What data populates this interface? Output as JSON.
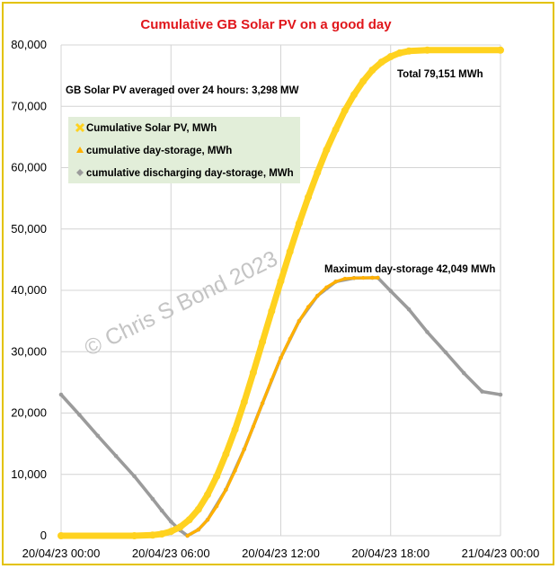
{
  "chart_data": {
    "type": "line",
    "title": "Cumulative GB Solar PV on a good day",
    "xlabel": "",
    "ylabel": "",
    "x_tick_labels": [
      "20/04/23 00:00",
      "20/04/23 06:00",
      "20/04/23 12:00",
      "20/04/23 18:00",
      "21/04/23 00:00"
    ],
    "xlim": [
      0,
      24
    ],
    "ylim": [
      0,
      80000
    ],
    "y_ticks": [
      0,
      10000,
      20000,
      30000,
      40000,
      50000,
      60000,
      70000,
      80000
    ],
    "y_tick_labels": [
      "0",
      "10,000",
      "20,000",
      "30,000",
      "40,000",
      "50,000",
      "60,000",
      "70,000",
      "80,000"
    ],
    "grid": true,
    "legend_position": "upper-left",
    "series": [
      {
        "name": "Cumulative Solar PV, MWh",
        "color": "#ffd21f",
        "marker": "x",
        "x": [
          0,
          4,
          5,
          5.5,
          6,
          6.5,
          7,
          7.5,
          8,
          8.5,
          9,
          9.5,
          10,
          10.5,
          11,
          11.5,
          12,
          12.5,
          13,
          13.5,
          14,
          14.5,
          15,
          15.5,
          16,
          16.5,
          17,
          17.5,
          18,
          18.5,
          19,
          20,
          24
        ],
        "y": [
          0,
          0,
          100,
          300,
          700,
          1400,
          2600,
          4300,
          6700,
          9700,
          13300,
          17300,
          21800,
          26600,
          31600,
          36600,
          41500,
          46300,
          50900,
          55200,
          59200,
          62900,
          66200,
          69300,
          71900,
          74100,
          75900,
          77200,
          78100,
          78700,
          79000,
          79151,
          79151
        ]
      },
      {
        "name": "cumulative day-storage, MWh",
        "color": "#ffb000",
        "marker": "triangle",
        "x": [
          6.9,
          7.5,
          8,
          8.5,
          9,
          9.5,
          10,
          10.5,
          11,
          11.5,
          12,
          12.5,
          13,
          13.5,
          14,
          14.5,
          15,
          15.5,
          16,
          16.5,
          17,
          17.3
        ],
        "y": [
          0,
          1000,
          2600,
          4800,
          7500,
          10600,
          14100,
          17800,
          21600,
          25400,
          29000,
          32100,
          35000,
          37300,
          39100,
          40500,
          41400,
          41900,
          42000,
          42040,
          42049,
          42049
        ]
      },
      {
        "name": "cumulative discharging day-storage, MWh",
        "color": "#9b9b9b",
        "marker": "diamond",
        "x": [
          0,
          1,
          2,
          3,
          4,
          5,
          5.5,
          6,
          6.5,
          6.9,
          7.5,
          8,
          9,
          10,
          11,
          12,
          13,
          14,
          15,
          16,
          17,
          17.3,
          18,
          19,
          20,
          21,
          22,
          23,
          24
        ],
        "y": [
          23000,
          19700,
          16300,
          13000,
          9700,
          6000,
          4100,
          2300,
          900,
          0,
          1000,
          2600,
          7500,
          14100,
          21600,
          29000,
          35000,
          39100,
          41400,
          42000,
          42049,
          42049,
          39900,
          36900,
          33200,
          29900,
          26500,
          23500,
          23000
        ]
      }
    ],
    "annotations": {
      "average": "GB Solar PV averaged over 24 hours:   3,298 MW",
      "total": "Total 79,151 MWh",
      "max_storage": "Maximum day-storage 42,049 MWh",
      "watermark": "© Chris S Bond  2023"
    }
  }
}
